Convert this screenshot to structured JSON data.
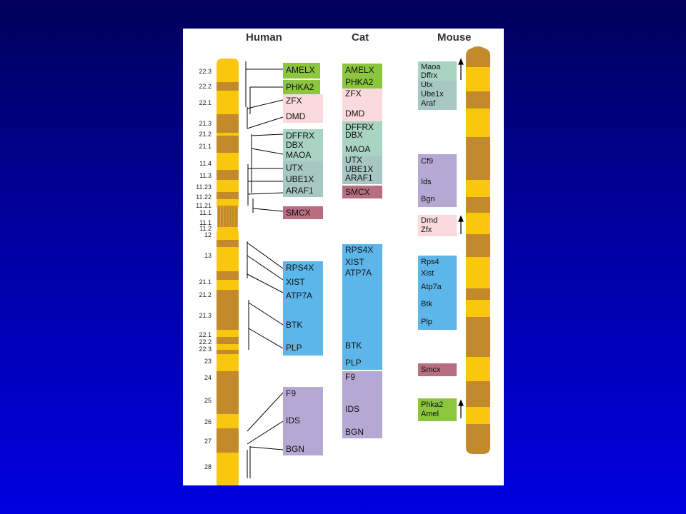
{
  "headers": {
    "human": "Human",
    "cat": "Cat",
    "mouse": "Mouse"
  },
  "colors": {
    "green": "#8cc63f",
    "pink": "#fadadd",
    "teal": "#a9d3c3",
    "teal_gray": "#a7c7c5",
    "purple": "#b5a8d3",
    "smcx": "#b86e80",
    "blue": "#5cb6ea",
    "chrom_yellow": "#f9c80e",
    "chrom_brown": "#c28a2a"
  },
  "human_bands": [
    "22.3",
    "22.2",
    "22.1",
    "21.3",
    "21.2",
    "21.1",
    "11.4",
    "11.3",
    "11.23",
    "11.22",
    "11.21",
    "11.1",
    "11.1",
    "11.2",
    "12",
    "13",
    "21.1",
    "21.2",
    "21.3",
    "22.1",
    "22.2",
    "22.3",
    "23",
    "24",
    "25",
    "26",
    "27",
    "28"
  ],
  "human_genes": {
    "g1": [
      "AMELX"
    ],
    "g2": [
      "PHKA2"
    ],
    "g3": [
      "ZFX",
      "DMD"
    ],
    "g4": [
      "DFFRX",
      "DBX",
      "MAOA"
    ],
    "g5": [
      "UTX",
      "UBE1X",
      "ARAF1"
    ],
    "g6": [
      "SMCX"
    ],
    "g7": [
      "RPS4X",
      "XIST",
      "ATP7A",
      "BTK",
      "PLP"
    ],
    "g8": [
      "F9",
      "IDS",
      "BGN"
    ]
  },
  "cat_genes": {
    "g1": [
      "AMELX",
      "PHKA2"
    ],
    "g2": [
      "ZFX",
      "DMD"
    ],
    "g3": [
      "DFFRX",
      "DBX",
      "MAOA"
    ],
    "g4": [
      "UTX",
      "UBE1X",
      "ARAF1"
    ],
    "g5": [
      "SMCX"
    ],
    "g6": [
      "RPS4X",
      "XIST",
      "ATP7A",
      "BTK",
      "PLP"
    ],
    "g7": [
      "F9",
      "IDS",
      "BGN"
    ]
  },
  "mouse_genes": {
    "g1": [
      "Maoa",
      "Dffrx",
      "Utx",
      "Ube1x",
      "Araf"
    ],
    "g2": [
      "Cf9",
      "Ids",
      "Bgn"
    ],
    "g3": [
      "Dmd",
      "Zfx"
    ],
    "g4": [
      "Rps4",
      "Xist",
      "Atp7a",
      "Btk",
      "Plp"
    ],
    "g5": [
      "Smcx"
    ],
    "g6": [
      "Phka2",
      "Amel"
    ]
  }
}
